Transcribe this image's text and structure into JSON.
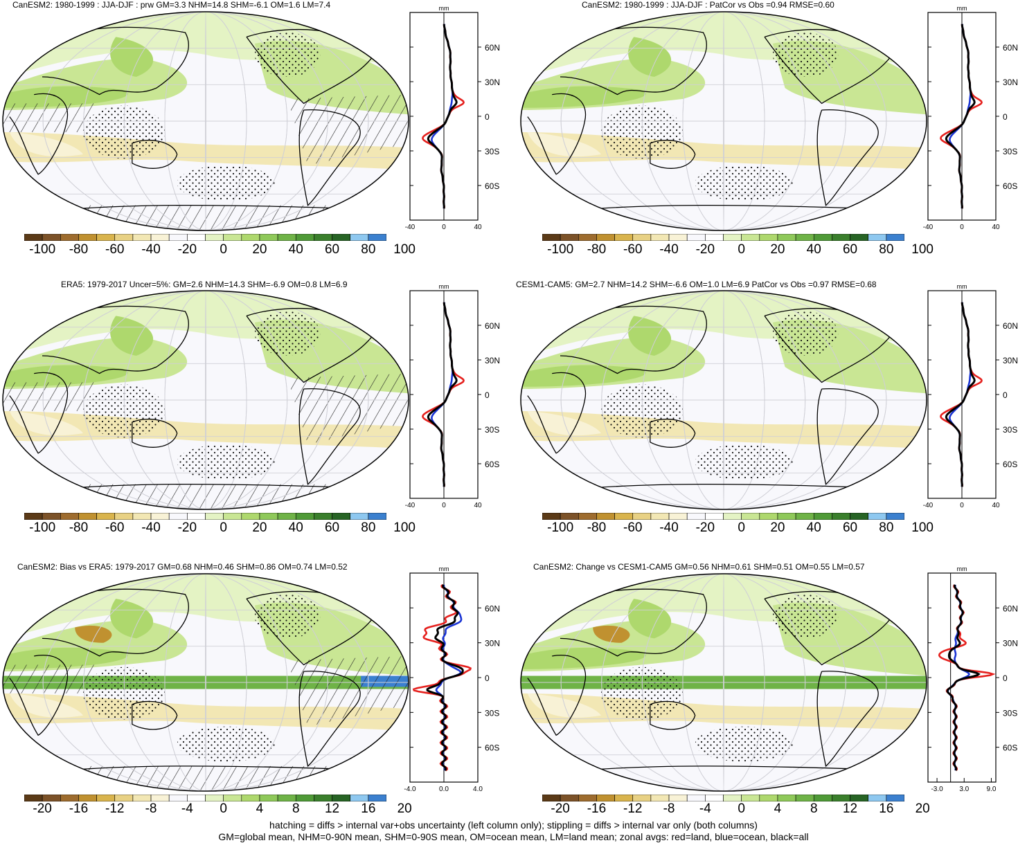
{
  "panels": [
    {
      "id": "p1",
      "title": "CanESM2: 1980-1999 : JJA-DJF : prw GM=3.3 NHM=14.8 SHM=-6.1 OM=1.6 LM=7.4",
      "zonal": {
        "unit": "mm",
        "xticks": [
          "-40",
          "0",
          "40"
        ],
        "xrange": [
          -40,
          40
        ],
        "lat_labels": [
          "60N",
          "30N",
          "0",
          "30S",
          "60S"
        ]
      },
      "colorbar": {
        "labels": [
          "-100",
          "-80",
          "-60",
          "-40",
          "-20",
          "0",
          "20",
          "40",
          "60",
          "80",
          "100"
        ]
      },
      "hatching": true
    },
    {
      "id": "p2",
      "title": "CanESM2: 1980-1999 : JJA-DJF : PatCor vs Obs =0.94 RMSE=0.60",
      "zonal": {
        "unit": "mm",
        "xticks": [
          "-40",
          "0",
          "40"
        ],
        "xrange": [
          -40,
          40
        ],
        "lat_labels": [
          "60N",
          "30N",
          "0",
          "30S",
          "60S"
        ]
      },
      "colorbar": {
        "labels": [
          "-100",
          "-80",
          "-60",
          "-40",
          "-20",
          "0",
          "20",
          "40",
          "60",
          "80",
          "100"
        ]
      },
      "hatching": false
    },
    {
      "id": "p3",
      "title": "ERA5: 1979-2017 Uncer=5%: GM=2.6 NHM=14.3 SHM=-6.9 OM=0.8 LM=6.9",
      "zonal": {
        "unit": "mm",
        "xticks": [
          "-40",
          "0",
          "40"
        ],
        "xrange": [
          -40,
          40
        ],
        "lat_labels": [
          "60N",
          "30N",
          "0",
          "30S",
          "60S"
        ]
      },
      "colorbar": {
        "labels": [
          "-100",
          "-80",
          "-60",
          "-40",
          "-20",
          "0",
          "20",
          "40",
          "60",
          "80",
          "100"
        ]
      },
      "hatching": true
    },
    {
      "id": "p4",
      "title": "CESM1-CAM5: GM=2.7 NHM=14.2 SHM=-6.6 OM=1.0 LM=6.9 PatCor vs Obs =0.97 RMSE=0.68",
      "zonal": {
        "unit": "mm",
        "xticks": [
          "-40",
          "0",
          "40"
        ],
        "xrange": [
          -40,
          40
        ],
        "lat_labels": [
          "60N",
          "30N",
          "0",
          "30S",
          "60S"
        ]
      },
      "colorbar": {
        "labels": [
          "-100",
          "-80",
          "-60",
          "-40",
          "-20",
          "0",
          "20",
          "40",
          "60",
          "80",
          "100"
        ]
      },
      "hatching": false
    },
    {
      "id": "p5",
      "title": "CanESM2: Bias vs ERA5: 1979-2017 GM=0.68 NHM=0.46 SHM=0.86 OM=0.74 LM=0.52",
      "zonal": {
        "unit": "mm",
        "xticks": [
          "-4.0",
          "0.0",
          "4.0"
        ],
        "xrange": [
          -4,
          4
        ],
        "lat_labels": [
          "60N",
          "30N",
          "0",
          "30S",
          "60S"
        ]
      },
      "colorbar": {
        "labels": [
          "-20",
          "-16",
          "-12",
          "-8",
          "-4",
          "0",
          "4",
          "8",
          "12",
          "16",
          "20"
        ]
      },
      "hatching": true
    },
    {
      "id": "p6",
      "title": "CanESM2: Change vs CESM1-CAM5 GM=0.56 NHM=0.61 SHM=0.51 OM=0.55 LM=0.57",
      "zonal": {
        "unit": "mm",
        "xticks": [
          "-3.0",
          "3.0",
          "9.0"
        ],
        "xrange": [
          -5,
          10
        ],
        "lat_labels": [
          "60N",
          "30N",
          "0",
          "30S",
          "60S"
        ]
      },
      "colorbar": {
        "labels": [
          "-20",
          "-16",
          "-12",
          "-8",
          "-4",
          "0",
          "4",
          "8",
          "12",
          "16",
          "20"
        ]
      },
      "hatching": false
    }
  ],
  "colors": {
    "palette": [
      "#5b3a17",
      "#7c5228",
      "#9e6c2e",
      "#c09130",
      "#d9b44d",
      "#e8d184",
      "#f2e7b4",
      "#f8f2d6",
      "#f8f8fc",
      "#ffffff",
      "#e4f3c4",
      "#c9e694",
      "#aed86d",
      "#8fc95a",
      "#6fb347",
      "#4f9a37",
      "#3a7f2c",
      "#276425",
      "#8ec8f0",
      "#3b80cf"
    ],
    "zonal_land": "#e5201d",
    "zonal_ocean": "#1a34d4",
    "zonal_all": "#000000"
  },
  "footer": {
    "line1": "hatching = diffs > internal var+obs uncertainty (left column only); stippling = diffs > internal var only (both columns)",
    "line2": "GM=global mean, NHM=0-90N mean, SHM=0-90S mean, OM=ocean mean, LM=land mean; zonal avgs: red=land, blue=ocean, black=all"
  }
}
